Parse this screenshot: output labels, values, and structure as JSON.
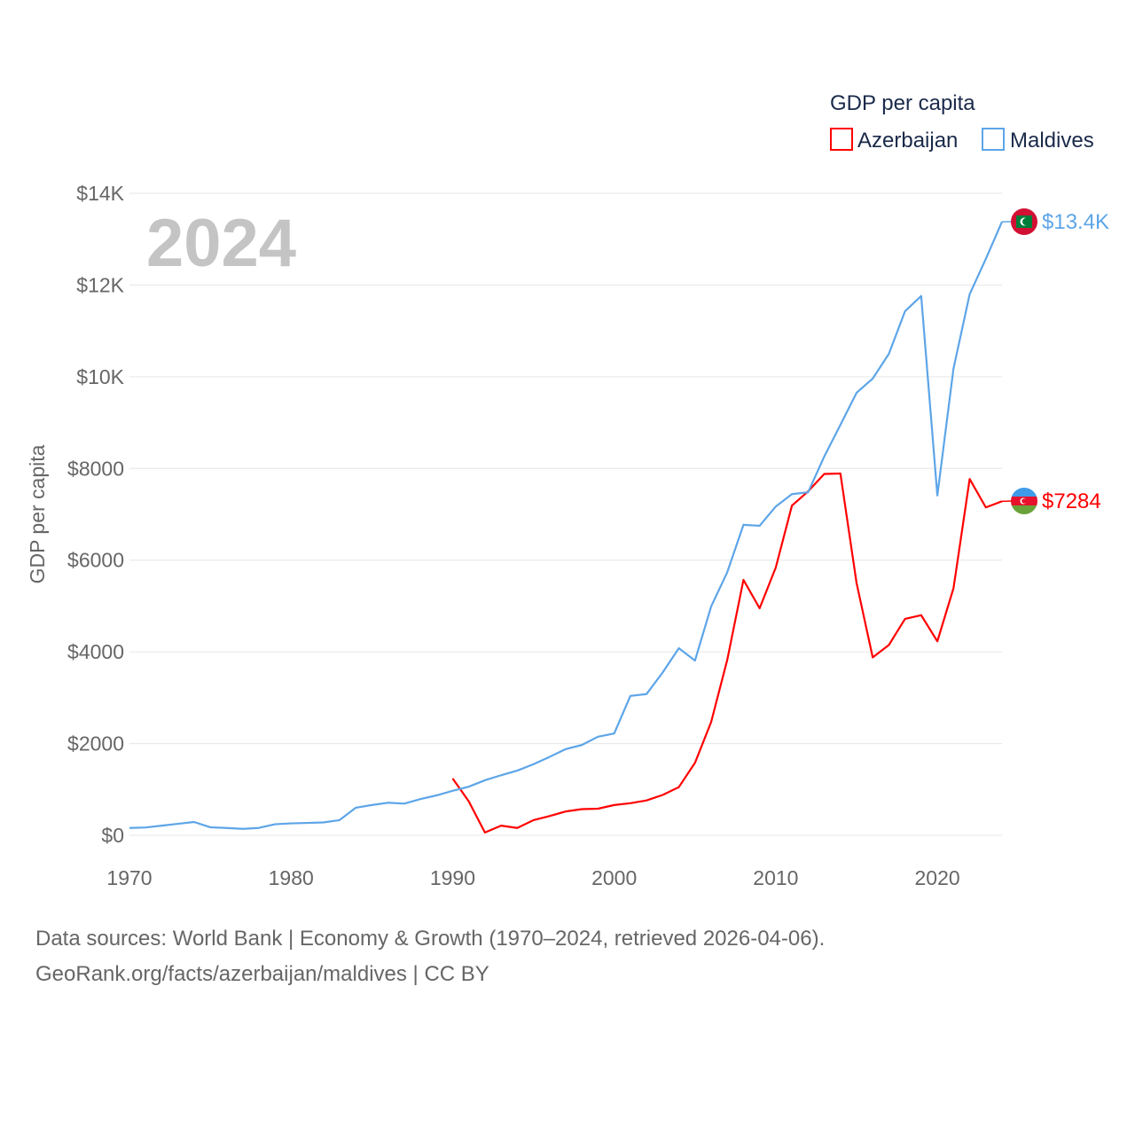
{
  "chart_data": {
    "type": "line",
    "legend_title": "GDP per capita",
    "legend_position": "top-right",
    "ylabel": "GDP per capita",
    "xlabel": "",
    "year_label": "2024",
    "xlim": [
      1970,
      2024
    ],
    "ylim": [
      0,
      14000
    ],
    "x_ticks": [
      1970,
      1980,
      1990,
      2000,
      2010,
      2020
    ],
    "x_tick_labels": [
      "1970",
      "1980",
      "1990",
      "2000",
      "2010",
      "2020"
    ],
    "y_ticks": [
      0,
      2000,
      4000,
      6000,
      8000,
      10000,
      12000,
      14000
    ],
    "y_tick_labels": [
      "$0",
      "$2000",
      "$4000",
      "$6000",
      "$8000",
      "$10K",
      "$12K",
      "$14K"
    ],
    "grid": true,
    "series": [
      {
        "name": "Azerbaijan",
        "color": "#ff0000",
        "end_label": "$7284",
        "flag": "azerbaijan-flag",
        "x": [
          1990,
          1991,
          1992,
          1993,
          1994,
          1995,
          1996,
          1997,
          1998,
          1999,
          2000,
          2001,
          2002,
          2003,
          2004,
          2005,
          2006,
          2007,
          2008,
          2009,
          2010,
          2011,
          2012,
          2013,
          2014,
          2015,
          2016,
          2017,
          2018,
          2019,
          2020,
          2021,
          2022,
          2023,
          2024
        ],
        "values": [
          1240,
          740,
          60,
          210,
          160,
          330,
          420,
          520,
          570,
          580,
          660,
          700,
          760,
          880,
          1050,
          1580,
          2470,
          3830,
          5570,
          4950,
          5840,
          7190,
          7500,
          7880,
          7890,
          5500,
          3880,
          4150,
          4720,
          4800,
          4230,
          5390,
          7770,
          7150,
          7284
        ]
      },
      {
        "name": "Maldives",
        "color": "#5da5e8",
        "end_label": "$13.4K",
        "flag": "maldives-flag",
        "x": [
          1970,
          1971,
          1972,
          1973,
          1974,
          1975,
          1976,
          1977,
          1978,
          1979,
          1980,
          1981,
          1982,
          1983,
          1984,
          1985,
          1986,
          1987,
          1988,
          1989,
          1990,
          1991,
          1992,
          1993,
          1994,
          1995,
          1996,
          1997,
          1998,
          1999,
          2000,
          2001,
          2002,
          2003,
          2004,
          2005,
          2006,
          2007,
          2008,
          2009,
          2010,
          2011,
          2012,
          2013,
          2014,
          2015,
          2016,
          2017,
          2018,
          2019,
          2020,
          2021,
          2022,
          2023,
          2024
        ],
        "values": [
          160,
          170,
          210,
          250,
          290,
          175,
          160,
          140,
          160,
          240,
          260,
          270,
          280,
          330,
          600,
          660,
          710,
          690,
          790,
          870,
          970,
          1060,
          1200,
          1310,
          1410,
          1550,
          1710,
          1880,
          1970,
          2150,
          2220,
          3040,
          3080,
          3550,
          4080,
          3810,
          4990,
          5740,
          6770,
          6750,
          7170,
          7440,
          7480,
          8260,
          8950,
          9650,
          9960,
          10500,
          11430,
          11760,
          7410,
          10180,
          11800,
          12570,
          13380
        ]
      }
    ]
  },
  "footer": {
    "line1": "Data sources: World Bank | Economy & Growth (1970–2024, retrieved 2026-04-06).",
    "line2": "GeoRank.org/facts/azerbaijan/maldives | CC BY"
  }
}
